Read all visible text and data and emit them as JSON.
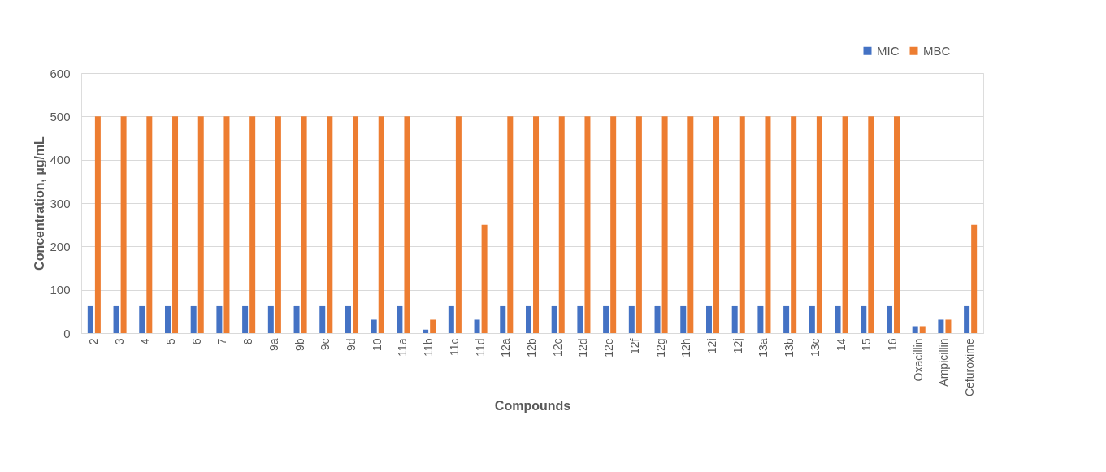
{
  "chart_data": {
    "type": "bar",
    "xlabel": "Compounds",
    "ylabel": "Concentration, µg/mL",
    "categories": [
      "2",
      "3",
      "4",
      "5",
      "6",
      "7",
      "8",
      "9a",
      "9b",
      "9c",
      "9d",
      "10",
      "11a",
      "11b",
      "11c",
      "11d",
      "12a",
      "12b",
      "12c",
      "12d",
      "12e",
      "12f",
      "12g",
      "12h",
      "12i",
      "12j",
      "13a",
      "13b",
      "13c",
      "14",
      "15",
      "16",
      "Oxacillin",
      "Ampicillin",
      "Cefuroxime"
    ],
    "series": [
      {
        "name": "MIC",
        "color": "#4472c4",
        "values": [
          62,
          62,
          62,
          62,
          62,
          62,
          62,
          62,
          62,
          62,
          62,
          31,
          62,
          8,
          62,
          31,
          62,
          62,
          62,
          62,
          62,
          62,
          62,
          62,
          62,
          62,
          62,
          62,
          62,
          62,
          62,
          62,
          16,
          31,
          62
        ]
      },
      {
        "name": "MBC",
        "color": "#ed7d31",
        "values": [
          500,
          500,
          500,
          500,
          500,
          500,
          500,
          500,
          500,
          500,
          500,
          500,
          500,
          31,
          500,
          250,
          500,
          500,
          500,
          500,
          500,
          500,
          500,
          500,
          500,
          500,
          500,
          500,
          500,
          500,
          500,
          500,
          16,
          31,
          250
        ]
      }
    ],
    "ylim": [
      0,
      600
    ],
    "yticks": [
      0,
      100,
      200,
      300,
      400,
      500,
      600
    ],
    "grid": "y",
    "legend": "top right"
  }
}
